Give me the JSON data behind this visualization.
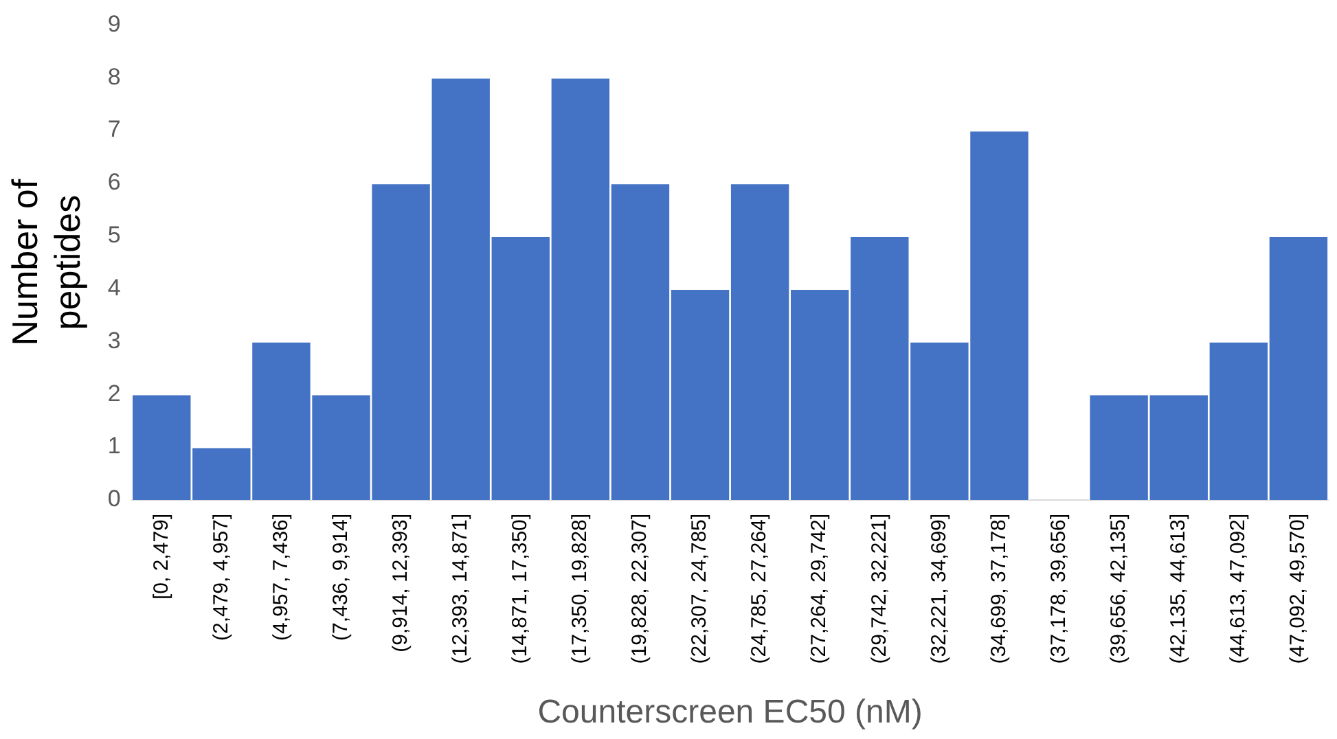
{
  "chart_data": {
    "type": "bar",
    "xlabel": "Counterscreen EC50 (nM)",
    "ylabel": "Number of peptides",
    "categories": [
      "[0, 2,479]",
      "(2,479, 4,957]",
      "(4,957, 7,436]",
      "(7,436, 9,914]",
      "(9,914, 12,393]",
      "(12,393, 14,871]",
      "(14,871, 17,350]",
      "(17,350, 19,828]",
      "(19,828, 22,307]",
      "(22,307, 24,785]",
      "(24,785, 27,264]",
      "(27,264, 29,742]",
      "(29,742, 32,221]",
      "(32,221, 34,699]",
      "(34,699, 37,178]",
      "(37,178, 39,656]",
      "(39,656, 42,135]",
      "(42,135, 44,613]",
      "(44,613, 47,092]",
      "(47,092, 49,570]"
    ],
    "values": [
      2,
      1,
      3,
      2,
      6,
      8,
      5,
      8,
      6,
      4,
      6,
      4,
      5,
      3,
      7,
      0,
      2,
      2,
      3,
      5
    ],
    "color": "#4472c4",
    "ylim": [
      0,
      9
    ],
    "yticks": [
      0,
      1,
      2,
      3,
      4,
      5,
      6,
      7,
      8,
      9
    ],
    "grid": false,
    "legend": false
  }
}
